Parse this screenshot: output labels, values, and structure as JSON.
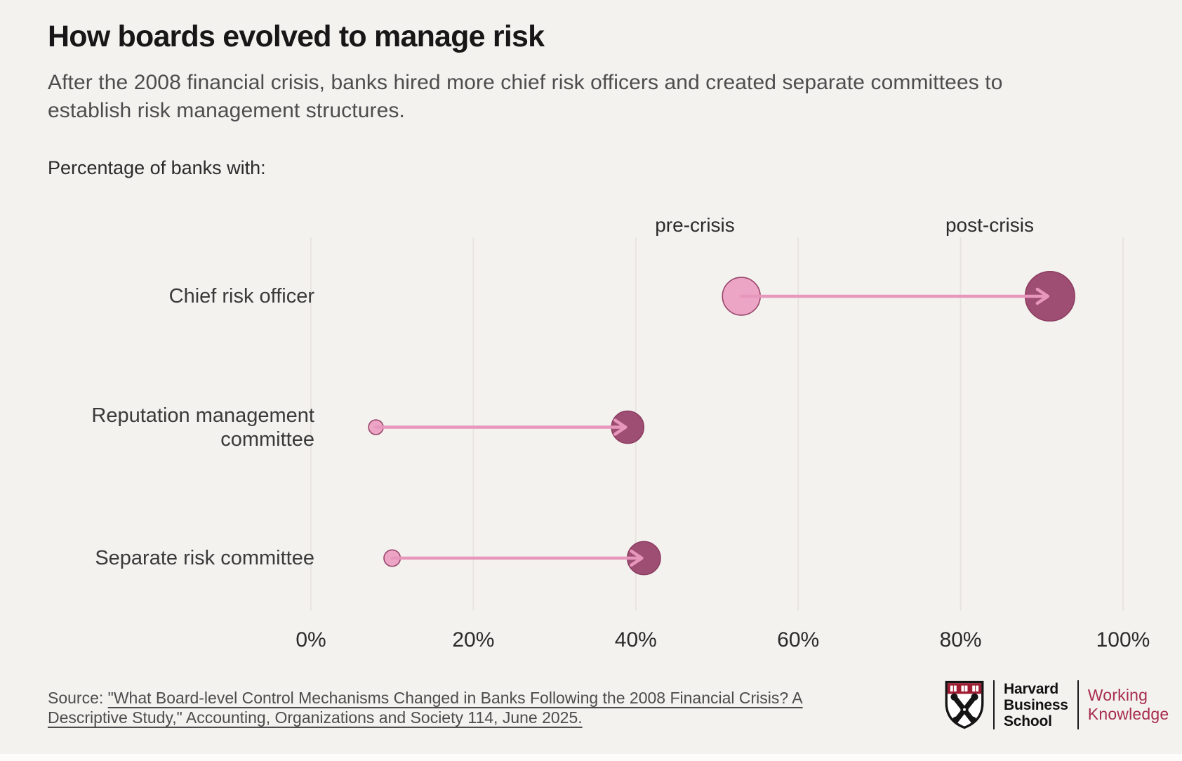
{
  "page": {
    "background": "#F4F2EF"
  },
  "header": {
    "title": "How boards evolved to manage risk",
    "subtitle": "After the 2008 financial crisis, banks hired more chief risk officers and created separate committees to establish risk management structures."
  },
  "chart_data": {
    "type": "dumbbell-arrow",
    "axis_title": "Percentage of banks with:",
    "categories": [
      "Chief risk officer",
      "Reputation management committee",
      "Separate risk committee"
    ],
    "series": [
      {
        "name": "pre-crisis",
        "values": [
          53,
          8,
          10
        ]
      },
      {
        "name": "post-crisis",
        "values": [
          91,
          39,
          41
        ]
      }
    ],
    "unit": "%",
    "xlim": [
      0,
      100
    ],
    "x_tick_values": [
      0,
      20,
      40,
      60,
      80,
      100
    ],
    "x_ticks": [
      "0%",
      "20%",
      "40%",
      "60%",
      "80%",
      "100%"
    ],
    "grid": "vertical-only",
    "legend_position": "top-inline",
    "marker_sizing": "area proportional to value",
    "colors": {
      "pre_fill": "#ECA5C5",
      "pre_stroke": "#99466B",
      "post_fill": "#9E4E72",
      "post_stroke": "#8A3A5E",
      "connector": "#E897BC",
      "gridline": "#E8E4E0",
      "axis_text": "#2B2B2B"
    }
  },
  "footer": {
    "source_prefix": "Source: ",
    "source_link": "\"What Board-level Control Mechanisms Changed in Banks Following the 2008 Financial Crisis? A Descriptive Study,\" Accounting, Organizations and Society 114, June 2025.",
    "logo": {
      "school_name": "Harvard\nBusiness\nSchool",
      "brand_name": "Working\nKnowledge",
      "brand_color": "#A72C4C",
      "shield_color": "#9E1B32"
    }
  }
}
